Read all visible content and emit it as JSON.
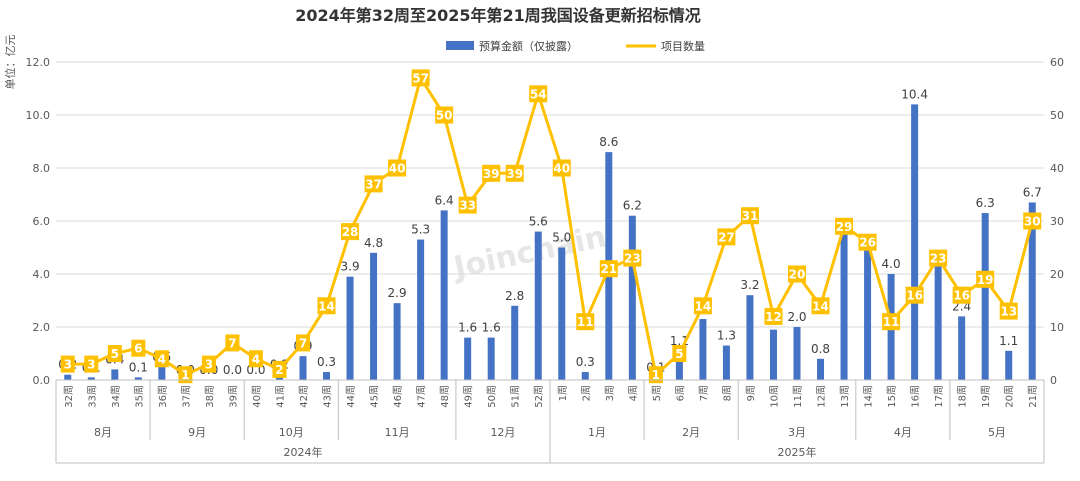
{
  "chart_data": {
    "type": "bar+line",
    "title": "2024年第32周至2025年第21周我国设备更新招标情况",
    "ylabel_left": "单位：亿元",
    "ylim_left": [
      0,
      12
    ],
    "yticks_left": [
      "0.0",
      "2.0",
      "4.0",
      "6.0",
      "8.0",
      "10.0",
      "12.0"
    ],
    "ylim_right": [
      0,
      60
    ],
    "yticks_right": [
      "0",
      "10",
      "20",
      "30",
      "40",
      "50",
      "60"
    ],
    "legend": {
      "bar": "预算金额（仅披露）",
      "line": "项目数量",
      "position": "top"
    },
    "watermark": "Joinchain",
    "categories": [
      "32周",
      "33周",
      "34周",
      "35周",
      "36周",
      "37周",
      "38周",
      "39周",
      "40周",
      "41周",
      "42周",
      "43周",
      "44周",
      "45周",
      "46周",
      "47周",
      "48周",
      "49周",
      "50周",
      "51周",
      "52周",
      "1周",
      "2周",
      "3周",
      "4周",
      "5周",
      "6周",
      "7周",
      "8周",
      "9周",
      "10周",
      "11周",
      "12周",
      "13周",
      "14周",
      "15周",
      "16周",
      "17周",
      "18周",
      "19周",
      "20周",
      "21周"
    ],
    "bar_values": [
      0.2,
      0.1,
      0.4,
      0.1,
      0.5,
      0.0,
      0.0,
      0.0,
      0.0,
      0.2,
      0.9,
      0.3,
      3.9,
      4.8,
      2.9,
      5.3,
      6.4,
      1.6,
      1.6,
      2.8,
      5.6,
      5.0,
      0.3,
      8.6,
      6.2,
      0.1,
      1.1,
      2.3,
      1.3,
      3.2,
      1.9,
      2.0,
      0.8,
      6.0,
      5.5,
      4.0,
      10.4,
      4.6,
      2.4,
      6.3,
      1.1,
      6.7
    ],
    "bar_labels": [
      "0.2",
      "0.1",
      "0.4",
      "0.1",
      "0.5",
      "0.0",
      "0.0",
      "0.0",
      "0.0",
      "0.2",
      "0.9",
      "0.3",
      "3.9",
      "4.8",
      "2.9",
      "5.3",
      "6.4",
      "1.6",
      "1.6",
      "2.8",
      "5.6",
      "5.0",
      "0.3",
      "8.6",
      "6.2",
      "0.1",
      "1.1",
      "2.3",
      "1.3",
      "3.2",
      "1.9",
      "2.0",
      "0.8",
      "",
      "",
      "4.0",
      "10.4",
      "",
      "2.4",
      "6.3",
      "1.1",
      "6.7"
    ],
    "line_values": [
      3,
      3,
      5,
      6,
      4,
      1,
      3,
      7,
      4,
      2,
      7,
      14,
      28,
      37,
      40,
      57,
      50,
      33,
      39,
      39,
      54,
      40,
      11,
      21,
      23,
      1,
      5,
      14,
      27,
      31,
      12,
      20,
      14,
      29,
      26,
      11,
      16,
      23,
      16,
      19,
      13,
      30
    ],
    "months": [
      {
        "label": "8月",
        "count": 4
      },
      {
        "label": "9月",
        "count": 4
      },
      {
        "label": "10月",
        "count": 4
      },
      {
        "label": "11月",
        "count": 5
      },
      {
        "label": "12月",
        "count": 4
      },
      {
        "label": "1月",
        "count": 4
      },
      {
        "label": "2月",
        "count": 4
      },
      {
        "label": "3月",
        "count": 5
      },
      {
        "label": "4月",
        "count": 4
      },
      {
        "label": "5月",
        "count": 4
      }
    ],
    "years": [
      {
        "label": "2024年",
        "count": 21
      },
      {
        "label": "2025年",
        "count": 21
      }
    ],
    "colors": {
      "bar": "#4472C4",
      "line": "#FFC000",
      "label_box": "#FFC000",
      "grid": "#D9D9D9"
    }
  }
}
